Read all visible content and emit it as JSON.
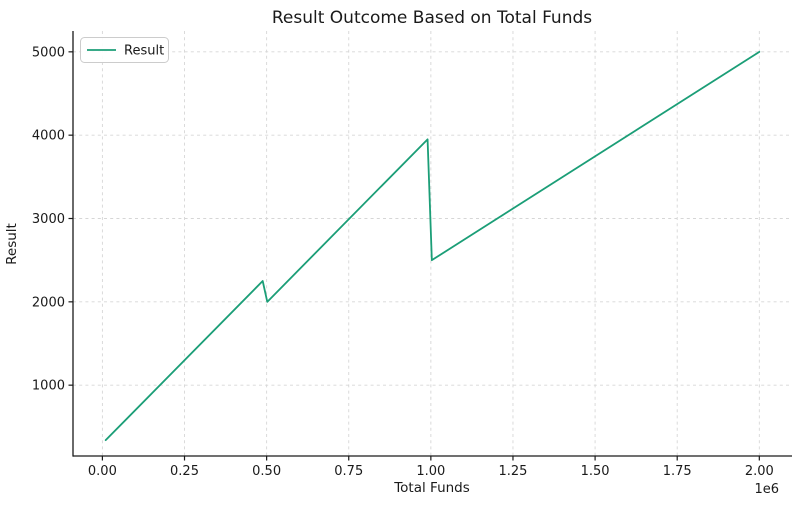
{
  "chart_data": {
    "type": "line",
    "title": "Result Outcome Based on Total Funds",
    "xlabel": "Total Funds",
    "ylabel": "Result",
    "x_offset_label": "1e6",
    "xlim": [
      -89500,
      2099500
    ],
    "ylim": [
      150,
      5250
    ],
    "xticks": [
      {
        "value": 0,
        "label": "0.00"
      },
      {
        "value": 250000,
        "label": "0.25"
      },
      {
        "value": 500000,
        "label": "0.50"
      },
      {
        "value": 750000,
        "label": "0.75"
      },
      {
        "value": 1000000,
        "label": "1.00"
      },
      {
        "value": 1250000,
        "label": "1.25"
      },
      {
        "value": 1500000,
        "label": "1.50"
      },
      {
        "value": 1750000,
        "label": "1.75"
      },
      {
        "value": 2000000,
        "label": "2.00"
      }
    ],
    "yticks": [
      {
        "value": 1000,
        "label": "1000"
      },
      {
        "value": 2000,
        "label": "2000"
      },
      {
        "value": 3000,
        "label": "3000"
      },
      {
        "value": 4000,
        "label": "4000"
      },
      {
        "value": 5000,
        "label": "5000"
      }
    ],
    "grid": {
      "on": true,
      "linestyle": "dashed"
    },
    "legend": {
      "position": "upper-left",
      "entries": [
        {
          "label": "Result",
          "color": "#1b9e77"
        }
      ]
    },
    "series": [
      {
        "name": "Result",
        "color": "#1b9e77",
        "points": [
          [
            10000,
            340
          ],
          [
            488000,
            2250
          ],
          [
            502000,
            2000
          ],
          [
            990000,
            3950
          ],
          [
            1003000,
            2500
          ],
          [
            2000000,
            5000
          ]
        ]
      }
    ],
    "colors": {
      "line": "#1b9e77",
      "grid": "#d6d6d6",
      "spine": "#1a1a1a",
      "tick": "#1a1a1a",
      "text": "#1a1a1a",
      "legend_border": "#cccccc",
      "background": "#ffffff"
    }
  }
}
